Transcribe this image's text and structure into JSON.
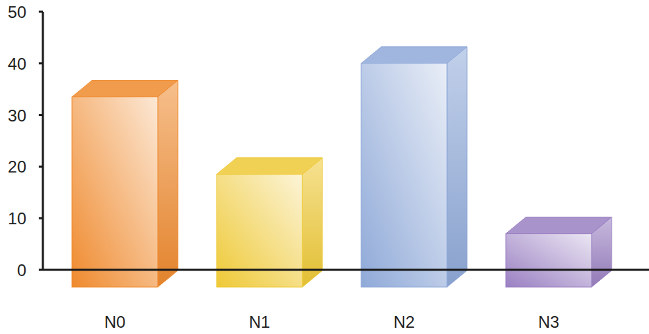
{
  "chart_data": {
    "type": "bar",
    "categories": [
      "N0",
      "N1",
      "N2",
      "N3"
    ],
    "values": [
      33.5,
      18.5,
      40,
      7
    ],
    "colors": [
      "#ef8a2e",
      "#eec936",
      "#8fa9d8",
      "#9a80c2"
    ],
    "ylim": [
      0,
      50
    ],
    "yticks": [
      0,
      10,
      20,
      30,
      40,
      50
    ],
    "grid": false,
    "data_labels": false
  }
}
